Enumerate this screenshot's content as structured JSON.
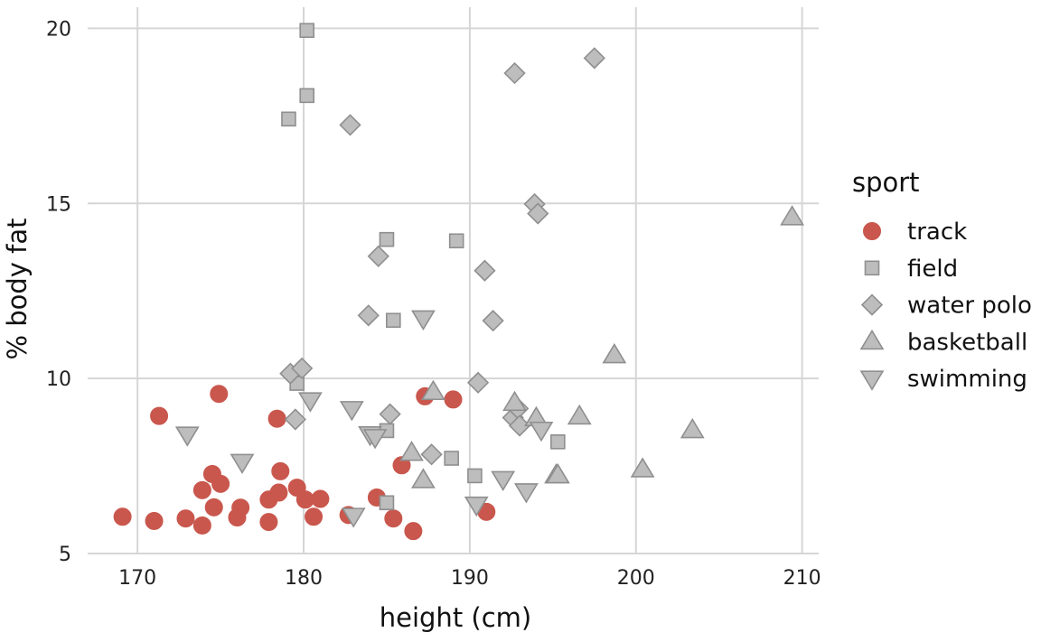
{
  "chart_data": {
    "type": "scatter",
    "xlabel": "height (cm)",
    "ylabel": "% body fat",
    "xlim": [
      167,
      211
    ],
    "ylim": [
      5,
      20.5
    ],
    "x_ticks": [
      170,
      180,
      190,
      200,
      210
    ],
    "y_ticks": [
      5,
      10,
      15,
      20
    ],
    "grid": true,
    "legend": {
      "title": "sport",
      "position": "right"
    },
    "series": [
      {
        "name": "track",
        "marker": "circle",
        "color": "#c9574d",
        "stroke": "#c9574d",
        "points": [
          [
            169.1,
            6.05
          ],
          [
            171.0,
            5.93
          ],
          [
            171.3,
            8.93
          ],
          [
            172.9,
            6.0
          ],
          [
            173.9,
            5.8
          ],
          [
            173.9,
            6.81
          ],
          [
            174.5,
            7.27
          ],
          [
            174.6,
            6.32
          ],
          [
            174.9,
            9.56
          ],
          [
            175.0,
            6.99
          ],
          [
            176.0,
            6.03
          ],
          [
            176.2,
            6.31
          ],
          [
            177.9,
            5.9
          ],
          [
            177.9,
            6.54
          ],
          [
            178.4,
            8.85
          ],
          [
            178.5,
            6.74
          ],
          [
            178.6,
            7.35
          ],
          [
            179.6,
            6.88
          ],
          [
            180.1,
            6.54
          ],
          [
            180.6,
            6.05
          ],
          [
            181.0,
            6.56
          ],
          [
            182.7,
            6.1
          ],
          [
            184.4,
            6.6
          ],
          [
            185.4,
            6.0
          ],
          [
            185.9,
            7.52
          ],
          [
            186.6,
            5.64
          ],
          [
            187.3,
            9.49
          ],
          [
            189.0,
            9.4
          ],
          [
            191.0,
            6.19
          ]
        ]
      },
      {
        "name": "field",
        "marker": "square",
        "color": "#bdbdbd",
        "stroke": "#8f8f8f",
        "points": [
          [
            180.2,
            19.94
          ],
          [
            180.2,
            18.08
          ],
          [
            179.1,
            17.41
          ],
          [
            185.0,
            13.97
          ],
          [
            189.2,
            13.93
          ],
          [
            185.4,
            11.66
          ],
          [
            179.6,
            9.86
          ],
          [
            185.0,
            8.51
          ],
          [
            188.9,
            7.72
          ],
          [
            185.0,
            6.45
          ],
          [
            190.3,
            7.22
          ],
          [
            195.3,
            8.19
          ]
        ]
      },
      {
        "name": "water polo",
        "marker": "diamond",
        "color": "#bdbdbd",
        "stroke": "#8f8f8f",
        "points": [
          [
            197.5,
            19.15
          ],
          [
            192.7,
            18.72
          ],
          [
            182.8,
            17.24
          ],
          [
            193.9,
            14.98
          ],
          [
            194.1,
            14.71
          ],
          [
            184.5,
            13.49
          ],
          [
            190.9,
            13.08
          ],
          [
            191.4,
            11.65
          ],
          [
            183.9,
            11.8
          ],
          [
            179.2,
            10.14
          ],
          [
            179.9,
            10.29
          ],
          [
            190.5,
            9.88
          ],
          [
            179.5,
            8.83
          ],
          [
            185.2,
            8.98
          ],
          [
            187.7,
            7.83
          ],
          [
            192.6,
            8.88
          ],
          [
            192.9,
            9.14
          ],
          [
            193.0,
            8.65
          ]
        ]
      },
      {
        "name": "basketball",
        "marker": "triangle-up",
        "color": "#bdbdbd",
        "stroke": "#8f8f8f",
        "points": [
          [
            209.4,
            14.6
          ],
          [
            198.7,
            10.66
          ],
          [
            187.8,
            9.61
          ],
          [
            192.7,
            9.3
          ],
          [
            194.0,
            8.86
          ],
          [
            196.6,
            8.91
          ],
          [
            203.4,
            8.52
          ],
          [
            186.5,
            7.87
          ],
          [
            187.2,
            7.09
          ],
          [
            195.2,
            7.23
          ],
          [
            195.3,
            7.23
          ],
          [
            200.4,
            7.4
          ]
        ]
      },
      {
        "name": "swimming",
        "marker": "triangle-down",
        "color": "#bdbdbd",
        "stroke": "#8f8f8f",
        "points": [
          [
            187.2,
            11.72
          ],
          [
            180.4,
            9.38
          ],
          [
            182.9,
            9.13
          ],
          [
            173.0,
            8.4
          ],
          [
            184.0,
            8.41
          ],
          [
            184.3,
            8.33
          ],
          [
            176.3,
            7.62
          ],
          [
            192.0,
            7.13
          ],
          [
            193.4,
            6.78
          ],
          [
            190.4,
            6.4
          ],
          [
            183.0,
            6.08
          ],
          [
            194.3,
            8.54
          ]
        ]
      }
    ]
  }
}
